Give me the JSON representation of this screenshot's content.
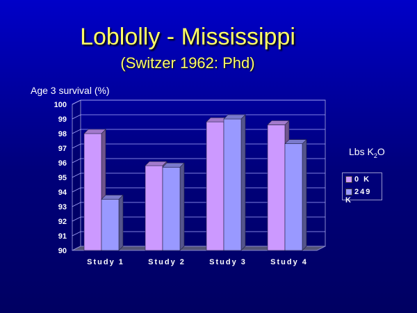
{
  "slide": {
    "title": "Loblolly - Mississippi",
    "subtitle": "(Switzer 1962: Phd)"
  },
  "chart_data": {
    "type": "bar",
    "ylabel": "Age 3 survival (%)",
    "xlabel": "",
    "ylim": [
      90,
      100
    ],
    "y_ticks": [
      90,
      91,
      92,
      93,
      94,
      95,
      96,
      97,
      98,
      99,
      100
    ],
    "categories": [
      "Study 1",
      "Study 2",
      "Study 3",
      "Study 4"
    ],
    "legend_title": "Lbs K",
    "legend_title_sub": "2",
    "legend_title_suffix": "O",
    "legend_position": "right",
    "grid": true,
    "series": [
      {
        "name": "0 K",
        "color": "#cc99ff",
        "values": [
          98.0,
          95.8,
          98.8,
          98.6
        ]
      },
      {
        "name": "249 K",
        "color": "#9999ff",
        "values": [
          93.5,
          95.7,
          99.0,
          97.3
        ]
      }
    ]
  },
  "colors": {
    "title": "#ffff66",
    "background_top": "#0000c8",
    "background_bottom": "#000062",
    "plot_grid": "#aaaaff"
  }
}
